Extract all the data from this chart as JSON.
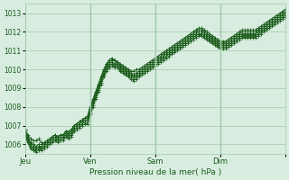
{
  "title": "Pression niveau de la mer( hPa )",
  "bg_color": "#d8ede0",
  "grid_color": "#a0c8a8",
  "line_color": "#1a5c1a",
  "marker_color": "#1a5c1a",
  "yticks": [
    1006,
    1007,
    1008,
    1009,
    1010,
    1011,
    1012,
    1013
  ],
  "ylim": [
    1005.5,
    1013.5
  ],
  "xlim": [
    0,
    96
  ],
  "xtick_positions": [
    0,
    24,
    48,
    72,
    96
  ],
  "xtick_labels": [
    "Jeu",
    "Ven",
    "Sam",
    "Dim",
    ""
  ],
  "num_steps": 97,
  "lines": [
    [
      1006.8,
      1006.5,
      1006.3,
      1006.2,
      1006.2,
      1006.3,
      1006.1,
      1006.0,
      1006.1,
      1006.2,
      1006.4,
      1006.5,
      1006.4,
      1006.5,
      1006.5,
      1006.7,
      1006.7,
      1006.8,
      1007.0,
      1007.1,
      1007.2,
      1007.3,
      1007.4,
      1007.5,
      1008.0,
      1008.4,
      1008.8,
      1009.2,
      1009.6,
      1010.0,
      1010.3,
      1010.5,
      1010.6,
      1010.5,
      1010.4,
      1010.3,
      1010.2,
      1010.1,
      1010.0,
      1009.9,
      1009.9,
      1010.0,
      1010.0,
      1010.1,
      1010.2,
      1010.3,
      1010.4,
      1010.5,
      1010.6,
      1010.7,
      1010.8,
      1010.9,
      1011.0,
      1011.1,
      1011.2,
      1011.3,
      1011.4,
      1011.5,
      1011.6,
      1011.7,
      1011.8,
      1011.9,
      1012.0,
      1012.1,
      1012.2,
      1012.2,
      1012.1,
      1012.0,
      1011.9,
      1011.8,
      1011.7,
      1011.6,
      1011.5,
      1011.5,
      1011.5,
      1011.6,
      1011.7,
      1011.8,
      1011.9,
      1012.0,
      1012.1,
      1012.1,
      1012.1,
      1012.1,
      1012.1,
      1012.1,
      1012.2,
      1012.3,
      1012.4,
      1012.5,
      1012.6,
      1012.7,
      1012.8,
      1012.9,
      1013.0,
      1013.1,
      1013.2
    ],
    [
      1006.8,
      1006.4,
      1006.1,
      1006.0,
      1005.9,
      1006.0,
      1006.0,
      1006.1,
      1006.2,
      1006.3,
      1006.4,
      1006.5,
      1006.4,
      1006.5,
      1006.5,
      1006.7,
      1006.6,
      1006.7,
      1007.0,
      1007.1,
      1007.2,
      1007.3,
      1007.4,
      1007.4,
      1007.9,
      1008.3,
      1008.7,
      1009.1,
      1009.5,
      1009.9,
      1010.2,
      1010.4,
      1010.5,
      1010.5,
      1010.4,
      1010.2,
      1010.1,
      1010.0,
      1009.9,
      1009.8,
      1009.7,
      1009.8,
      1009.9,
      1010.0,
      1010.1,
      1010.2,
      1010.3,
      1010.4,
      1010.5,
      1010.6,
      1010.7,
      1010.8,
      1010.9,
      1011.0,
      1011.1,
      1011.2,
      1011.3,
      1011.4,
      1011.5,
      1011.6,
      1011.7,
      1011.8,
      1011.9,
      1012.0,
      1012.1,
      1012.1,
      1012.0,
      1011.9,
      1011.8,
      1011.7,
      1011.6,
      1011.5,
      1011.4,
      1011.4,
      1011.4,
      1011.5,
      1011.6,
      1011.7,
      1011.8,
      1011.9,
      1012.0,
      1012.0,
      1012.0,
      1012.0,
      1012.0,
      1012.0,
      1012.1,
      1012.2,
      1012.3,
      1012.4,
      1012.5,
      1012.6,
      1012.7,
      1012.8,
      1012.9,
      1013.0,
      1013.1
    ],
    [
      1006.7,
      1006.3,
      1006.0,
      1005.9,
      1005.8,
      1005.9,
      1005.9,
      1006.0,
      1006.1,
      1006.2,
      1006.3,
      1006.4,
      1006.3,
      1006.4,
      1006.4,
      1006.6,
      1006.5,
      1006.6,
      1006.9,
      1007.0,
      1007.1,
      1007.2,
      1007.3,
      1007.3,
      1007.8,
      1008.2,
      1008.6,
      1009.0,
      1009.4,
      1009.8,
      1010.1,
      1010.3,
      1010.4,
      1010.3,
      1010.3,
      1010.1,
      1010.0,
      1009.9,
      1009.8,
      1009.7,
      1009.6,
      1009.7,
      1009.8,
      1009.9,
      1010.0,
      1010.1,
      1010.2,
      1010.3,
      1010.4,
      1010.5,
      1010.6,
      1010.7,
      1010.8,
      1010.9,
      1011.0,
      1011.1,
      1011.2,
      1011.3,
      1011.4,
      1011.5,
      1011.6,
      1011.7,
      1011.8,
      1011.9,
      1012.0,
      1012.0,
      1011.9,
      1011.8,
      1011.7,
      1011.6,
      1011.5,
      1011.4,
      1011.3,
      1011.3,
      1011.3,
      1011.4,
      1011.5,
      1011.6,
      1011.7,
      1011.8,
      1011.9,
      1011.9,
      1011.9,
      1011.9,
      1011.9,
      1011.9,
      1012.0,
      1012.1,
      1012.2,
      1012.3,
      1012.4,
      1012.5,
      1012.6,
      1012.7,
      1012.8,
      1012.9,
      1013.0
    ],
    [
      1006.6,
      1006.2,
      1005.9,
      1005.8,
      1005.7,
      1005.8,
      1005.8,
      1005.9,
      1006.0,
      1006.1,
      1006.2,
      1006.3,
      1006.2,
      1006.3,
      1006.3,
      1006.5,
      1006.4,
      1006.5,
      1006.8,
      1006.9,
      1007.0,
      1007.1,
      1007.2,
      1007.2,
      1007.7,
      1008.1,
      1008.5,
      1008.9,
      1009.3,
      1009.7,
      1010.0,
      1010.2,
      1010.3,
      1010.2,
      1010.2,
      1010.0,
      1009.9,
      1009.8,
      1009.7,
      1009.6,
      1009.5,
      1009.6,
      1009.7,
      1009.8,
      1009.9,
      1010.0,
      1010.1,
      1010.2,
      1010.3,
      1010.4,
      1010.5,
      1010.6,
      1010.7,
      1010.8,
      1010.9,
      1011.0,
      1011.1,
      1011.2,
      1011.3,
      1011.4,
      1011.5,
      1011.6,
      1011.7,
      1011.8,
      1011.9,
      1011.9,
      1011.8,
      1011.7,
      1011.6,
      1011.5,
      1011.4,
      1011.3,
      1011.2,
      1011.2,
      1011.2,
      1011.3,
      1011.4,
      1011.5,
      1011.6,
      1011.7,
      1011.8,
      1011.8,
      1011.8,
      1011.8,
      1011.8,
      1011.8,
      1011.9,
      1012.0,
      1012.1,
      1012.2,
      1012.3,
      1012.4,
      1012.5,
      1012.6,
      1012.7,
      1012.8,
      1012.9
    ],
    [
      1006.5,
      1006.1,
      1005.8,
      1005.7,
      1005.6,
      1005.7,
      1005.7,
      1005.8,
      1005.9,
      1006.0,
      1006.1,
      1006.2,
      1006.1,
      1006.2,
      1006.2,
      1006.4,
      1006.3,
      1006.4,
      1006.7,
      1006.8,
      1006.9,
      1007.0,
      1007.1,
      1007.1,
      1007.6,
      1008.0,
      1008.4,
      1008.8,
      1009.2,
      1009.6,
      1009.9,
      1010.1,
      1010.2,
      1010.1,
      1010.1,
      1009.9,
      1009.8,
      1009.7,
      1009.6,
      1009.5,
      1009.4,
      1009.5,
      1009.6,
      1009.7,
      1009.8,
      1009.9,
      1010.0,
      1010.1,
      1010.2,
      1010.3,
      1010.4,
      1010.5,
      1010.6,
      1010.7,
      1010.8,
      1010.9,
      1011.0,
      1011.1,
      1011.2,
      1011.3,
      1011.4,
      1011.5,
      1011.6,
      1011.7,
      1011.8,
      1011.8,
      1011.7,
      1011.6,
      1011.5,
      1011.4,
      1011.3,
      1011.2,
      1011.1,
      1011.1,
      1011.1,
      1011.2,
      1011.3,
      1011.4,
      1011.5,
      1011.6,
      1011.7,
      1011.7,
      1011.7,
      1011.7,
      1011.7,
      1011.7,
      1011.8,
      1011.9,
      1012.0,
      1012.1,
      1012.2,
      1012.3,
      1012.4,
      1012.5,
      1012.6,
      1012.7,
      1012.8
    ]
  ]
}
